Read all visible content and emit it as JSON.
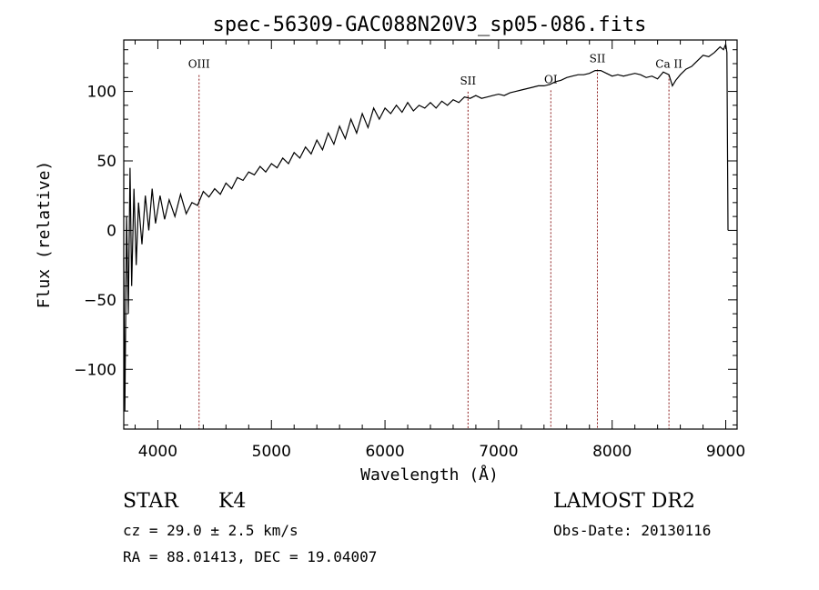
{
  "chart_data": {
    "type": "line",
    "title": "spec-56309-GAC088N20V3_sp05-086.fits",
    "xlabel": "Wavelength (Å)",
    "ylabel": "Flux (relative)",
    "xlim": [
      3700,
      9100
    ],
    "ylim": [
      -143,
      137
    ],
    "xticks": [
      4000,
      5000,
      6000,
      7000,
      8000,
      9000
    ],
    "yticks": [
      -100,
      -50,
      0,
      50,
      100
    ],
    "grid": false,
    "series": [
      {
        "color": "#000000",
        "x": [
          3700,
          3710,
          3725,
          3740,
          3755,
          3770,
          3790,
          3810,
          3830,
          3860,
          3890,
          3920,
          3950,
          3980,
          4020,
          4060,
          4100,
          4150,
          4200,
          4250,
          4300,
          4350,
          4400,
          4450,
          4500,
          4550,
          4600,
          4650,
          4700,
          4750,
          4800,
          4850,
          4900,
          4950,
          5000,
          5050,
          5100,
          5150,
          5200,
          5250,
          5300,
          5350,
          5400,
          5450,
          5500,
          5550,
          5600,
          5650,
          5700,
          5750,
          5800,
          5850,
          5900,
          5950,
          6000,
          6050,
          6100,
          6150,
          6200,
          6250,
          6300,
          6350,
          6400,
          6450,
          6500,
          6550,
          6600,
          6650,
          6700,
          6750,
          6800,
          6850,
          6900,
          6950,
          7000,
          7050,
          7100,
          7150,
          7200,
          7250,
          7300,
          7350,
          7400,
          7450,
          7500,
          7550,
          7600,
          7650,
          7700,
          7750,
          7800,
          7850,
          7900,
          7950,
          8000,
          8050,
          8100,
          8150,
          8200,
          8250,
          8300,
          8350,
          8400,
          8450,
          8500,
          8530,
          8560,
          8600,
          8650,
          8700,
          8750,
          8800,
          8850,
          8900,
          8950,
          8980,
          9000,
          9010,
          9020
        ],
        "y": [
          -20,
          -130,
          10,
          -60,
          45,
          -40,
          30,
          -25,
          20,
          -10,
          25,
          0,
          30,
          5,
          25,
          8,
          22,
          10,
          26,
          12,
          20,
          18,
          28,
          24,
          30,
          26,
          34,
          30,
          38,
          36,
          42,
          40,
          46,
          42,
          48,
          45,
          52,
          48,
          56,
          52,
          60,
          55,
          65,
          58,
          70,
          62,
          75,
          66,
          80,
          70,
          84,
          74,
          88,
          80,
          88,
          84,
          90,
          85,
          92,
          86,
          90,
          88,
          92,
          88,
          93,
          90,
          94,
          92,
          96,
          95,
          97,
          95,
          96,
          97,
          98,
          97,
          99,
          100,
          101,
          102,
          103,
          104,
          104,
          105,
          107,
          108,
          110,
          111,
          112,
          112,
          113,
          115,
          115,
          113,
          111,
          112,
          111,
          112,
          113,
          112,
          110,
          111,
          109,
          114,
          112,
          104,
          108,
          112,
          116,
          118,
          122,
          126,
          125,
          128,
          132,
          130,
          134,
          128,
          0
        ]
      }
    ],
    "annotations": [
      {
        "label": "OIII",
        "x": 4363,
        "label_y": 117
      },
      {
        "label": "SII",
        "x": 6731,
        "label_y": 105
      },
      {
        "label": "OI",
        "x": 7460,
        "label_y": 106
      },
      {
        "label": "SII",
        "x": 7870,
        "label_y": 121
      },
      {
        "label": "Ca II",
        "x": 8500,
        "label_y": 117
      }
    ]
  },
  "info": {
    "object_class": "STAR",
    "subclass": "K4",
    "survey": "LAMOST DR2",
    "cz": "cz = 29.0 ± 2.5 km/s",
    "obs_date": "Obs-Date: 20130116",
    "coords": "RA =  88.01413, DEC =  19.04007"
  }
}
